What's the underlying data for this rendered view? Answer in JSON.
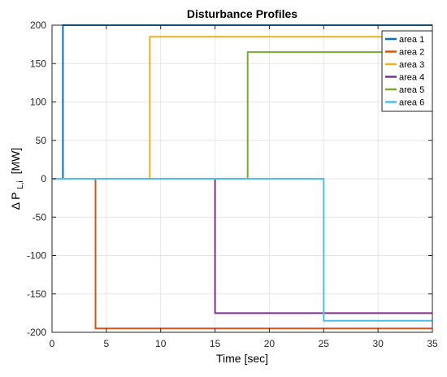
{
  "chart_data": {
    "type": "line",
    "title": "Disturbance Profiles",
    "xlabel": "Time [sec]",
    "ylabel_main": "Δ P",
    "ylabel_sub": "L,i",
    "ylabel_unit": "[MW]",
    "xlim": [
      0,
      35
    ],
    "ylim": [
      -200,
      200
    ],
    "xticks": [
      0,
      5,
      10,
      15,
      20,
      25,
      30,
      35
    ],
    "yticks": [
      -200,
      -150,
      -100,
      -50,
      0,
      50,
      100,
      150,
      200
    ],
    "grid": true,
    "legend_position": "top-right",
    "series": [
      {
        "name": "area 1",
        "color": "#0072BD",
        "x": [
          0,
          1,
          1,
          35
        ],
        "y": [
          0,
          0,
          200,
          200
        ]
      },
      {
        "name": "area 2",
        "color": "#D95319",
        "x": [
          0,
          4,
          4,
          35
        ],
        "y": [
          0,
          0,
          -195,
          -195
        ]
      },
      {
        "name": "area 3",
        "color": "#EDB120",
        "x": [
          0,
          9,
          9,
          35
        ],
        "y": [
          0,
          0,
          185,
          185
        ]
      },
      {
        "name": "area 4",
        "color": "#7E2F8E",
        "x": [
          0,
          15,
          15,
          35
        ],
        "y": [
          0,
          0,
          -175,
          -175
        ]
      },
      {
        "name": "area 5",
        "color": "#77AC30",
        "x": [
          0,
          18,
          18,
          35
        ],
        "y": [
          0,
          0,
          165,
          165
        ]
      },
      {
        "name": "area 6",
        "color": "#4DBEEE",
        "x": [
          0,
          25,
          25,
          35
        ],
        "y": [
          0,
          0,
          -185,
          -185
        ]
      }
    ]
  }
}
